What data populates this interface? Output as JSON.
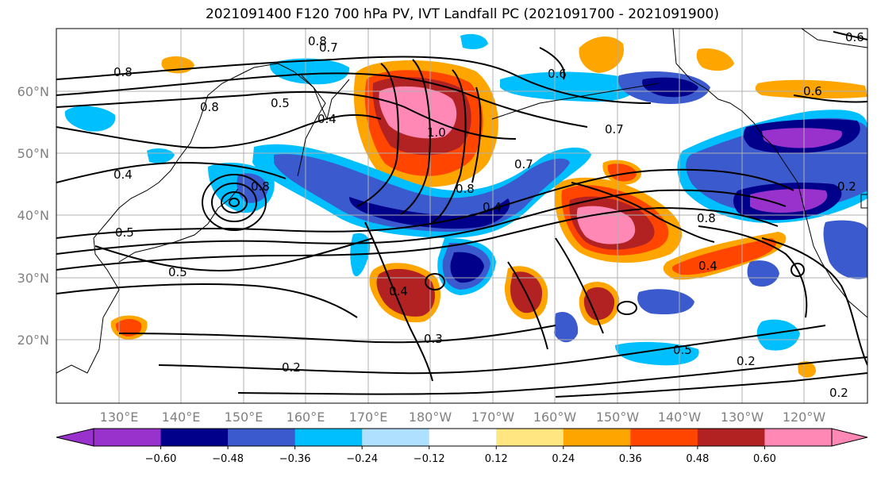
{
  "title": "2021091400 F120 700 hPa PV, IVT Landfall PC (2021091700 - 2021091900)",
  "lat_labels": [
    "60°N",
    "50°N",
    "40°N",
    "30°N",
    "20°N"
  ],
  "lon_labels": [
    "130°E",
    "140°E",
    "150°E",
    "160°E",
    "170°E",
    "180°W",
    "170°W",
    "160°W",
    "150°W",
    "140°W",
    "130°W",
    "120°W"
  ],
  "colorbar": {
    "colors": [
      "#9932cc",
      "#00008b",
      "#3a5acd",
      "#00bfff",
      "#b0e0ff",
      "#ffffff",
      "#ffe680",
      "#ffa500",
      "#ff4500",
      "#b22222",
      "#ff88b5"
    ],
    "tick_labels": [
      "-0.60",
      "-0.48",
      "-0.36",
      "-0.24",
      "-0.12",
      "0.12",
      "0.24",
      "0.36",
      "0.48",
      "0.60"
    ]
  },
  "contour_labels": [
    "0.8",
    "0.7",
    "0.8",
    "0.6",
    "0.8",
    "0.5",
    "0.4",
    "1.0",
    "0.8",
    "0.7",
    "0.4",
    "0.8",
    "0.4",
    "0.5",
    "0.4",
    "0.3",
    "0.2",
    "0.5",
    "0.2",
    "0.2",
    "0.8",
    "0.6",
    "0.4",
    "0.5",
    "0.2",
    "0.6",
    "0.7"
  ]
}
